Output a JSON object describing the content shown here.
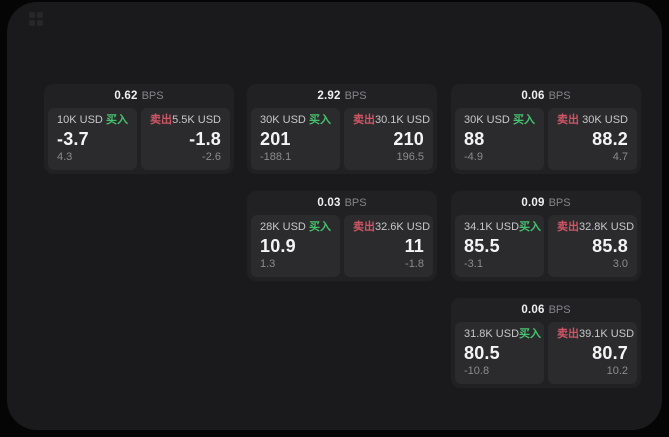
{
  "labels": {
    "bps": "BPS",
    "buy": "买入",
    "sell": "卖出"
  },
  "icons": {
    "app": "grid-icon"
  },
  "colors": {
    "background": "#050506",
    "panel": "#1a1a1c",
    "card": "#212123",
    "subpanel": "#2b2b2d",
    "buy_green": "#46c16e",
    "sell_red": "#cd5565"
  },
  "cards": [
    {
      "bps": "0.62",
      "buy": {
        "amount": "10K USD",
        "price": "-3.7",
        "delta": "4.3"
      },
      "sell": {
        "amount": "5.5K USD",
        "price": "-1.8",
        "delta": "-2.6"
      }
    },
    {
      "bps": "2.92",
      "buy": {
        "amount": "30K USD",
        "price": "201",
        "delta": "-188.1"
      },
      "sell": {
        "amount": "30.1K USD",
        "price": "210",
        "delta": "196.5"
      }
    },
    {
      "bps": "0.06",
      "buy": {
        "amount": "30K USD",
        "price": "88",
        "delta": "-4.9"
      },
      "sell": {
        "amount": "30K USD",
        "price": "88.2",
        "delta": "4.7"
      }
    },
    {
      "bps": "0.03",
      "buy": {
        "amount": "28K USD",
        "price": "10.9",
        "delta": "1.3"
      },
      "sell": {
        "amount": "32.6K USD",
        "price": "11",
        "delta": "-1.8"
      }
    },
    {
      "bps": "0.09",
      "buy": {
        "amount": "34.1K USD",
        "price": "85.5",
        "delta": "-3.1"
      },
      "sell": {
        "amount": "32.8K USD",
        "price": "85.8",
        "delta": "3.0"
      }
    },
    {
      "bps": "0.06",
      "buy": {
        "amount": "31.8K USD",
        "price": "80.5",
        "delta": "-10.8"
      },
      "sell": {
        "amount": "39.1K USD",
        "price": "80.7",
        "delta": "10.2"
      }
    }
  ]
}
